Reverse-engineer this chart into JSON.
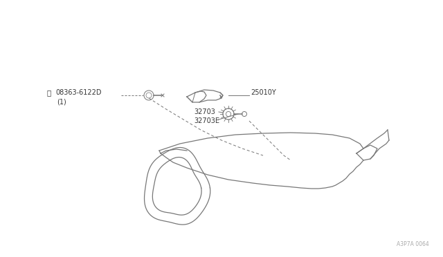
{
  "bg_color": "#ffffff",
  "line_color": "#777777",
  "text_color": "#333333",
  "watermark": "A3P7A 0064",
  "labels": {
    "bolt": "08363-6122D",
    "bolt_sub": "(1)",
    "sensor": "25010Y",
    "pinion1": "32703",
    "pinion2": "32703E"
  },
  "figsize": [
    6.4,
    3.72
  ],
  "dpi": 100,
  "font_size": 7.0
}
